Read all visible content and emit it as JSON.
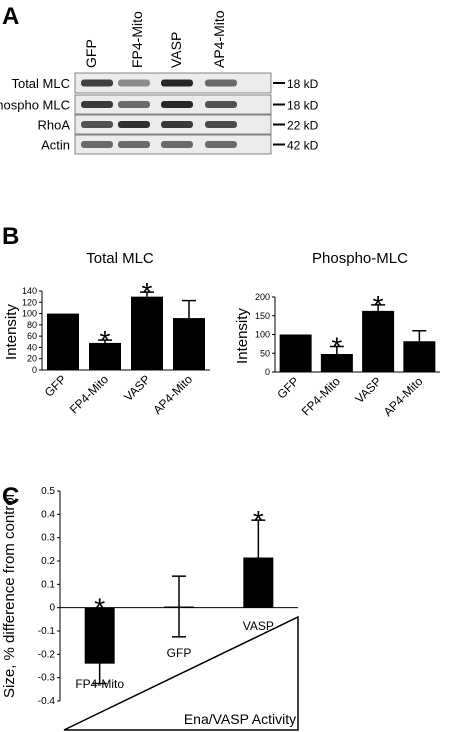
{
  "panels": {
    "a": {
      "letter": "A",
      "lanes": [
        "GFP",
        "FP4-Mito",
        "VASP",
        "AP4-Mito"
      ],
      "rows": [
        {
          "label": "Total MLC",
          "size": "18 kD",
          "intensity": [
            0.8,
            0.35,
            0.95,
            0.55
          ]
        },
        {
          "label": "Phospho MLC",
          "size": "18 kD",
          "intensity": [
            0.85,
            0.55,
            0.95,
            0.7
          ]
        },
        {
          "label": "RhoA",
          "size": "22 kD",
          "intensity": [
            0.7,
            0.9,
            0.85,
            0.75
          ]
        },
        {
          "label": "Actin",
          "size": "42 kD",
          "intensity": [
            0.55,
            0.55,
            0.55,
            0.55
          ]
        }
      ]
    },
    "b": {
      "letter": "B"
    },
    "c": {
      "letter": "C",
      "wedge_label": "Ena/VASP Activity"
    }
  },
  "chart_data": [
    {
      "type": "bar",
      "title": "Total MLC",
      "ylabel": "Intensity",
      "categories": [
        "GFP",
        "FP4-Mito",
        "VASP",
        "AP4-Mito"
      ],
      "values": [
        100,
        48,
        130,
        92
      ],
      "errors": [
        0,
        5,
        8,
        31
      ],
      "significant": [
        false,
        true,
        true,
        false
      ],
      "yticks": [
        "0",
        "20",
        "40",
        "60",
        "80",
        "100",
        "120",
        "140"
      ],
      "ylim": [
        0,
        140
      ],
      "color": "#000000"
    },
    {
      "type": "bar",
      "title": "Phospho-MLC",
      "ylabel": "Intensity",
      "categories": [
        "GFP",
        "FP4-Mito",
        "VASP",
        "AP4-Mito"
      ],
      "values": [
        100,
        48,
        163,
        82
      ],
      "errors": [
        0,
        20,
        16,
        28
      ],
      "significant": [
        false,
        true,
        true,
        false
      ],
      "yticks": [
        "0",
        "50",
        "100",
        "150",
        "200"
      ],
      "ylim": [
        0,
        200
      ],
      "color": "#000000"
    },
    {
      "type": "bar",
      "ylabel": "Size, % difference from control",
      "categories": [
        "FP4-Mito",
        "GFP",
        "VASP"
      ],
      "values": [
        -0.24,
        0.005,
        0.215
      ],
      "errors": [
        0.085,
        0.13,
        0.16
      ],
      "significant": [
        true,
        false,
        true
      ],
      "yticks": [
        "-0.4",
        "-0.3",
        "-0.2",
        "-0.1",
        "0",
        "0.1",
        "0.2",
        "0.3",
        "0.4",
        "0.5"
      ],
      "ylim": [
        -0.4,
        0.5
      ],
      "color": "#000000"
    }
  ]
}
